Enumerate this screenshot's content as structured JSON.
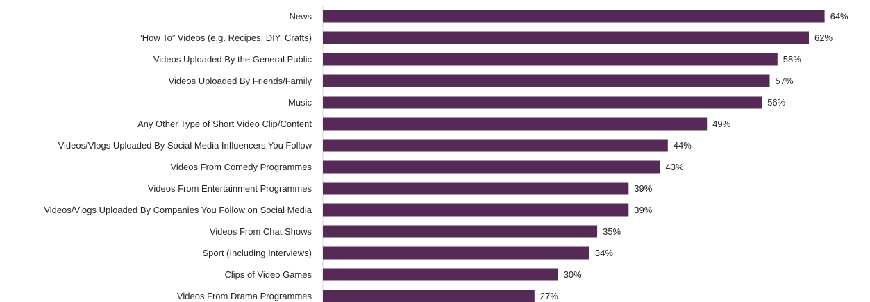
{
  "chart_data": {
    "type": "bar",
    "orientation": "horizontal",
    "title": "",
    "xlabel": "",
    "ylabel": "",
    "xlim": [
      0,
      100
    ],
    "grid": false,
    "legend": "none",
    "value_suffix": "%",
    "bar_color": "#562a57",
    "categories": [
      "News",
      "“How To” Videos (e.g. Recipes, DIY, Crafts)",
      "Videos Uploaded By the General Public",
      "Videos Uploaded By Friends/Family",
      "Music",
      "Any Other Type of Short Video Clip/Content",
      "Videos/Vlogs Uploaded By Social Media Influencers You Follow",
      "Videos From Comedy Programmes",
      "Videos From Entertainment Programmes",
      "Videos/Vlogs Uploaded By Companies You Follow on Social Media",
      "Videos From Chat Shows",
      "Sport (Including Interviews)",
      "Clips of Video Games",
      "Videos From Drama Programmes"
    ],
    "values": [
      64,
      62,
      58,
      57,
      56,
      49,
      44,
      43,
      39,
      39,
      35,
      34,
      30,
      27
    ],
    "data_labels": [
      "64%",
      "62%",
      "58%",
      "57%",
      "56%",
      "49%",
      "44%",
      "43%",
      "39%",
      "39%",
      "35%",
      "34%",
      "30%",
      "27%"
    ]
  }
}
